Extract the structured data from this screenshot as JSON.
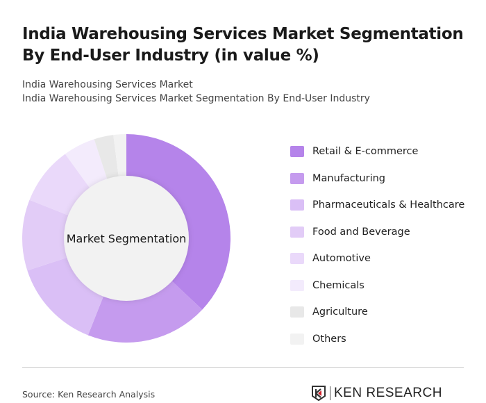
{
  "title": "India Warehousing Services Market Segmentation By End-User Industry (in value %)",
  "subtitle_1": "India Warehousing Services Market",
  "subtitle_2": "India Warehousing Services Market Segmentation By End-User Industry",
  "source": "Source: Ken Research Analysis",
  "logo_text": "KEN RESEARCH",
  "chart_data": {
    "type": "pie",
    "variant": "donut",
    "center_label": "Market Segmentation",
    "legend_position": "right",
    "categories": [
      "Retail & E-commerce",
      "Manufacturing",
      "Pharmaceuticals & Healthcare",
      "Food and Beverage",
      "Automotive",
      "Chemicals",
      "Agriculture",
      "Others"
    ],
    "values": [
      37,
      19,
      14,
      11,
      9,
      5,
      3,
      2
    ],
    "colors": [
      "#b584ea",
      "#c59bee",
      "#dabff6",
      "#e2ccf7",
      "#ead9fa",
      "#f3ebfc",
      "#e8e8e8",
      "#f2f2f2"
    ]
  }
}
